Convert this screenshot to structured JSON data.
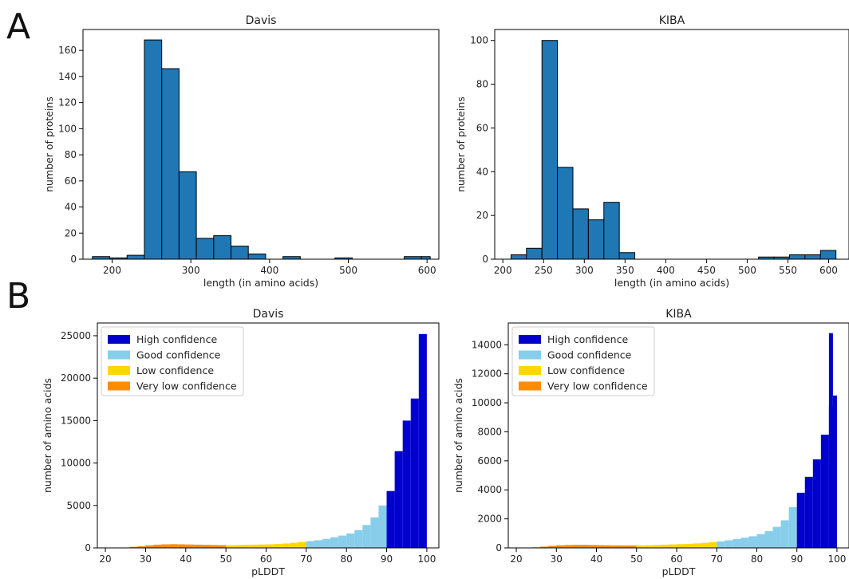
{
  "panels": [
    {
      "letter": "A"
    },
    {
      "letter": "B"
    }
  ],
  "chart_data": [
    {
      "type": "bar",
      "subtype": "histogram",
      "title": "Davis",
      "xlabel": "length (in amino acids)",
      "ylabel": "number of proteins",
      "xlim": [
        163,
        615
      ],
      "ylim": [
        0,
        176
      ],
      "xticks": [
        200,
        300,
        400,
        500,
        600
      ],
      "yticks": [
        0,
        20,
        40,
        60,
        80,
        100,
        120,
        140,
        160
      ],
      "bar_color": "#1f77b4",
      "edge_color": "#000000",
      "bins": [
        {
          "x0": 175,
          "x1": 197,
          "count": 2
        },
        {
          "x0": 197,
          "x1": 219,
          "count": 1
        },
        {
          "x0": 219,
          "x1": 241,
          "count": 3
        },
        {
          "x0": 241,
          "x1": 263,
          "count": 168
        },
        {
          "x0": 263,
          "x1": 285,
          "count": 146
        },
        {
          "x0": 285,
          "x1": 307,
          "count": 67
        },
        {
          "x0": 307,
          "x1": 329,
          "count": 16
        },
        {
          "x0": 329,
          "x1": 351,
          "count": 18
        },
        {
          "x0": 351,
          "x1": 373,
          "count": 10
        },
        {
          "x0": 373,
          "x1": 395,
          "count": 4
        },
        {
          "x0": 395,
          "x1": 417,
          "count": 0
        },
        {
          "x0": 417,
          "x1": 439,
          "count": 2
        },
        {
          "x0": 439,
          "x1": 461,
          "count": 0
        },
        {
          "x0": 461,
          "x1": 483,
          "count": 0
        },
        {
          "x0": 483,
          "x1": 505,
          "count": 1
        },
        {
          "x0": 505,
          "x1": 527,
          "count": 0
        },
        {
          "x0": 527,
          "x1": 549,
          "count": 0
        },
        {
          "x0": 549,
          "x1": 571,
          "count": 0
        },
        {
          "x0": 571,
          "x1": 593,
          "count": 2
        },
        {
          "x0": 593,
          "x1": 604,
          "count": 2
        }
      ]
    },
    {
      "type": "bar",
      "subtype": "histogram",
      "title": "KIBA",
      "xlabel": "length (in amino acids)",
      "ylabel": "number of proteins",
      "xlim": [
        190,
        625
      ],
      "ylim": [
        0,
        105
      ],
      "xticks": [
        200,
        250,
        300,
        350,
        400,
        450,
        500,
        550,
        600
      ],
      "yticks": [
        0,
        20,
        40,
        60,
        80,
        100
      ],
      "bar_color": "#1f77b4",
      "edge_color": "#000000",
      "bins": [
        {
          "x0": 210,
          "x1": 229,
          "count": 2
        },
        {
          "x0": 229,
          "x1": 248,
          "count": 5
        },
        {
          "x0": 248,
          "x1": 267,
          "count": 100
        },
        {
          "x0": 267,
          "x1": 286,
          "count": 42
        },
        {
          "x0": 286,
          "x1": 305,
          "count": 23
        },
        {
          "x0": 305,
          "x1": 324,
          "count": 18
        },
        {
          "x0": 324,
          "x1": 343,
          "count": 26
        },
        {
          "x0": 343,
          "x1": 362,
          "count": 3
        },
        {
          "x0": 362,
          "x1": 381,
          "count": 0
        },
        {
          "x0": 381,
          "x1": 400,
          "count": 0
        },
        {
          "x0": 400,
          "x1": 419,
          "count": 0
        },
        {
          "x0": 419,
          "x1": 438,
          "count": 0
        },
        {
          "x0": 438,
          "x1": 457,
          "count": 0
        },
        {
          "x0": 457,
          "x1": 476,
          "count": 0
        },
        {
          "x0": 476,
          "x1": 495,
          "count": 0
        },
        {
          "x0": 495,
          "x1": 514,
          "count": 0
        },
        {
          "x0": 514,
          "x1": 533,
          "count": 1
        },
        {
          "x0": 533,
          "x1": 552,
          "count": 1
        },
        {
          "x0": 552,
          "x1": 571,
          "count": 2
        },
        {
          "x0": 571,
          "x1": 590,
          "count": 2
        },
        {
          "x0": 590,
          "x1": 609,
          "count": 4
        }
      ]
    },
    {
      "type": "bar",
      "subtype": "histogram",
      "title": "Davis",
      "xlabel": "pLDDT",
      "ylabel": "number of amino acids",
      "xlim": [
        18,
        103
      ],
      "ylim": [
        0,
        26500
      ],
      "xticks": [
        20,
        30,
        40,
        50,
        60,
        70,
        80,
        90,
        100
      ],
      "yticks": [
        0,
        5000,
        10000,
        15000,
        20000,
        25000
      ],
      "legend": {
        "placement": "top-left",
        "entries": [
          {
            "label": "High confidence",
            "color": "#0000cc"
          },
          {
            "label": "Good confidence",
            "color": "#87ceeb"
          },
          {
            "label": "Low confidence",
            "color": "#ffd700"
          },
          {
            "label": "Very low confidence",
            "color": "#ff8c00"
          }
        ]
      },
      "bin_width": 2,
      "series": [
        {
          "name": "Very low confidence",
          "color": "#ff8c00",
          "x0": [
            22,
            24,
            26,
            28,
            30,
            32,
            34,
            36,
            38,
            40,
            42,
            44,
            46,
            48
          ],
          "values": [
            10,
            50,
            120,
            200,
            300,
            380,
            420,
            440,
            420,
            400,
            380,
            360,
            340,
            320
          ]
        },
        {
          "name": "Low confidence",
          "color": "#ffd700",
          "x0": [
            50,
            52,
            54,
            56,
            58,
            60,
            62,
            64,
            66,
            68
          ],
          "values": [
            320,
            340,
            360,
            380,
            400,
            420,
            460,
            520,
            600,
            700
          ]
        },
        {
          "name": "Good confidence",
          "color": "#87ceeb",
          "x0": [
            70,
            72,
            74,
            76,
            78,
            80,
            82,
            84,
            86,
            88
          ],
          "values": [
            800,
            900,
            1050,
            1250,
            1450,
            1700,
            2100,
            2700,
            3600,
            5000
          ]
        },
        {
          "name": "High confidence",
          "color": "#0000cc",
          "x0": [
            90,
            92,
            94,
            96,
            98
          ],
          "values": [
            6700,
            11400,
            15000,
            17600,
            25200
          ]
        }
      ]
    },
    {
      "type": "bar",
      "subtype": "histogram",
      "title": "KIBA",
      "xlabel": "pLDDT",
      "ylabel": "number of amino acids",
      "xlim": [
        18,
        103
      ],
      "ylim": [
        0,
        15500
      ],
      "xticks": [
        20,
        30,
        40,
        50,
        60,
        70,
        80,
        90,
        100
      ],
      "yticks": [
        0,
        2000,
        4000,
        6000,
        8000,
        10000,
        12000,
        14000
      ],
      "legend": {
        "placement": "top-left",
        "entries": [
          {
            "label": "High confidence",
            "color": "#0000cc"
          },
          {
            "label": "Good confidence",
            "color": "#87ceeb"
          },
          {
            "label": "Low confidence",
            "color": "#ffd700"
          },
          {
            "label": "Very low confidence",
            "color": "#ff8c00"
          }
        ]
      },
      "bin_width": 2,
      "series": [
        {
          "name": "Very low confidence",
          "color": "#ff8c00",
          "x0": [
            22,
            24,
            26,
            28,
            30,
            32,
            34,
            36,
            38,
            40,
            42,
            44,
            46,
            48
          ],
          "values": [
            10,
            40,
            90,
            140,
            180,
            200,
            210,
            210,
            200,
            190,
            180,
            175,
            170,
            170
          ]
        },
        {
          "name": "Low confidence",
          "color": "#ffd700",
          "x0": [
            50,
            52,
            54,
            56,
            58,
            60,
            62,
            64,
            66,
            68
          ],
          "values": [
            175,
            185,
            200,
            220,
            240,
            260,
            280,
            310,
            350,
            400
          ]
        },
        {
          "name": "Good confidence",
          "color": "#87ceeb",
          "x0": [
            70,
            72,
            74,
            76,
            78,
            80,
            82,
            84,
            86,
            88
          ],
          "values": [
            450,
            520,
            600,
            700,
            800,
            950,
            1150,
            1450,
            1900,
            2800
          ]
        },
        {
          "name": "High confidence",
          "color": "#0000cc",
          "x0": [
            90,
            92,
            94,
            96,
            98
          ],
          "values": [
            3800,
            4900,
            6100,
            7800,
            9800
          ]
        }
      ],
      "extra_bars": [
        {
          "x0": 98,
          "x1": 99,
          "value": 14800,
          "color": "#0000cc"
        },
        {
          "x0": 99,
          "x1": 100,
          "value": 10500,
          "color": "#0000cc"
        }
      ]
    }
  ]
}
